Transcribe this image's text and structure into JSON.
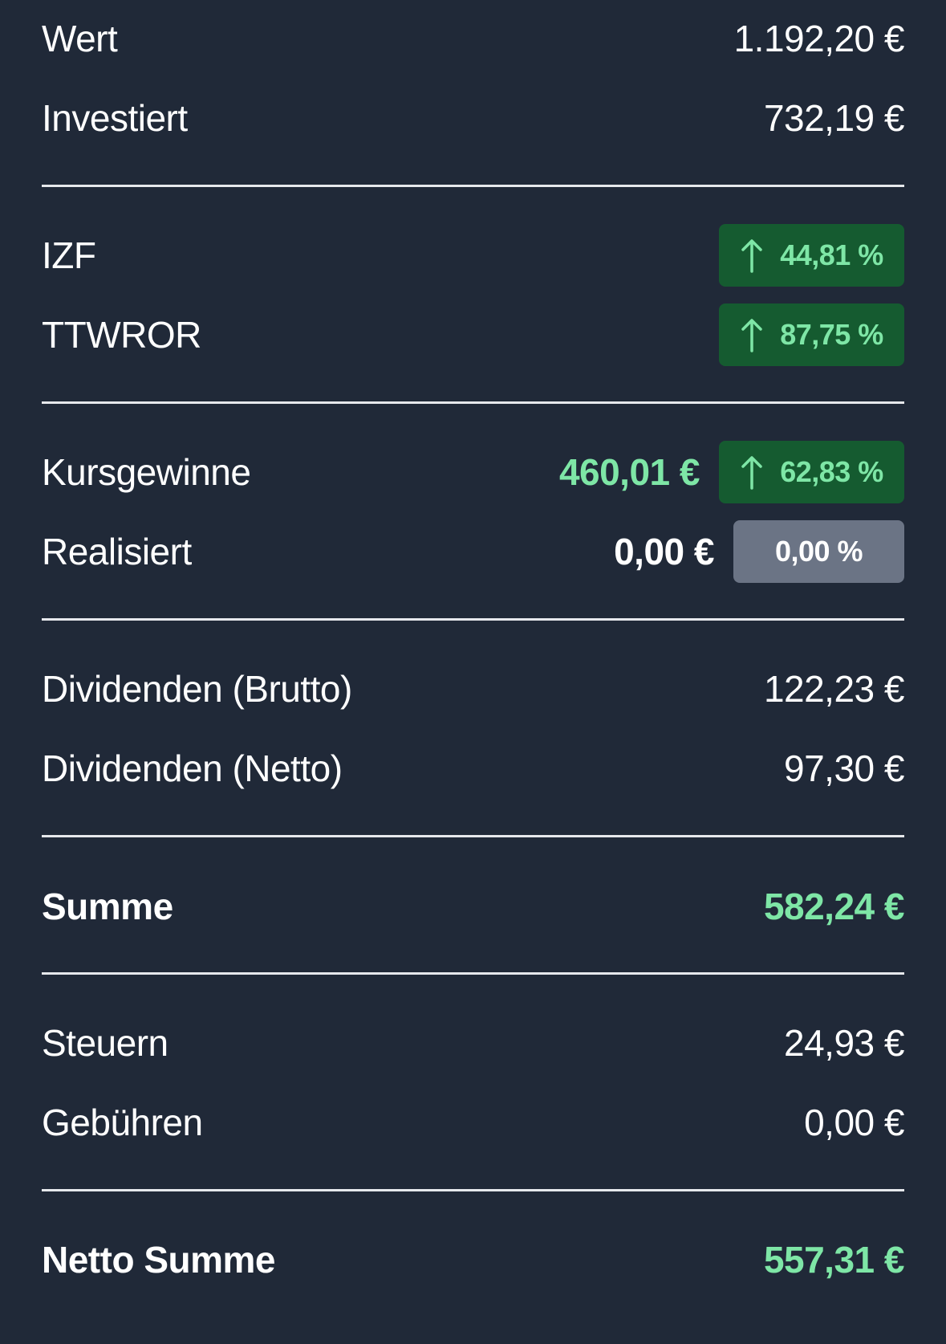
{
  "summary": {
    "wert": {
      "label": "Wert",
      "value": "1.192,20 €"
    },
    "investiert": {
      "label": "Investiert",
      "value": "732,19 €"
    },
    "izf": {
      "label": "IZF",
      "percent": "44,81 %"
    },
    "ttwror": {
      "label": "TTWROR",
      "percent": "87,75 %"
    },
    "kursgewinne": {
      "label": "Kursgewinne",
      "value": "460,01 €",
      "percent": "62,83 %"
    },
    "realisiert": {
      "label": "Realisiert",
      "value": "0,00 €",
      "percent": "0,00 %"
    },
    "dividenden_brutto": {
      "label": "Dividenden (Brutto)",
      "value": "122,23 €"
    },
    "dividenden_netto": {
      "label": "Dividenden (Netto)",
      "value": "97,30 €"
    },
    "summe": {
      "label": "Summe",
      "value": "582,24 €"
    },
    "steuern": {
      "label": "Steuern",
      "value": "24,93 €"
    },
    "gebuehren": {
      "label": "Gebühren",
      "value": "0,00 €"
    },
    "netto_summe": {
      "label": "Netto Summe",
      "value": "557,31 €"
    }
  },
  "icons": {
    "up_arrow": "arrow-up-icon"
  },
  "colors": {
    "background": "#202938",
    "positive_text": "#7ee6a6",
    "positive_badge": "#155b30",
    "neutral_badge": "#6b7485",
    "divider": "#e6e8ec"
  }
}
